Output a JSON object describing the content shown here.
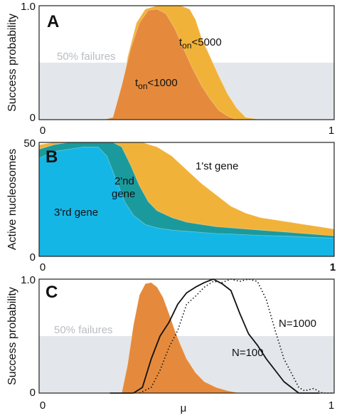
{
  "colors": {
    "orange": "#e58a3c",
    "yellow": "#f1b23a",
    "teal": "#1b9a9d",
    "blue": "#14b6e6",
    "failure_band": "#e3e6ea",
    "line": "#111111"
  },
  "chart_data": [
    {
      "id": "A",
      "panel_letter": "A",
      "type": "area",
      "ylabel": "Success probability",
      "xlim": [
        0,
        1
      ],
      "ylim": [
        0,
        1
      ],
      "x_tick_labels": [
        "0",
        "1"
      ],
      "y_tick_labels": [
        "0",
        "1.0"
      ],
      "band": {
        "from": 0,
        "to": 0.5,
        "label": "50% failures"
      },
      "series": [
        {
          "name": "t_on<5000",
          "label_main": "t",
          "label_sub": "on",
          "label_rest": "<5000",
          "color": "yellow",
          "x": [
            0.0,
            0.18,
            0.24,
            0.27,
            0.3,
            0.33,
            0.36,
            0.4,
            0.44,
            0.48,
            0.51,
            0.53,
            0.55,
            0.58,
            0.61,
            0.64,
            0.67,
            0.7,
            0.75,
            1.0
          ],
          "y": [
            0.0,
            0.0,
            0.0,
            0.05,
            0.55,
            0.85,
            0.97,
            1.0,
            1.0,
            1.0,
            0.97,
            0.88,
            0.72,
            0.55,
            0.38,
            0.22,
            0.1,
            0.02,
            0.0,
            0.0
          ]
        },
        {
          "name": "t_on<1000",
          "label_main": "t",
          "label_sub": "on",
          "label_rest": "<1000",
          "color": "orange",
          "x": [
            0.0,
            0.18,
            0.22,
            0.25,
            0.28,
            0.31,
            0.34,
            0.37,
            0.4,
            0.43,
            0.46,
            0.49,
            0.52,
            0.55,
            0.58,
            0.61,
            0.64,
            0.67,
            0.7,
            1.0
          ],
          "y": [
            0.0,
            0.0,
            0.0,
            0.02,
            0.3,
            0.62,
            0.85,
            0.96,
            0.97,
            0.93,
            0.8,
            0.62,
            0.45,
            0.3,
            0.18,
            0.08,
            0.03,
            0.0,
            0.0,
            0.0
          ]
        }
      ]
    },
    {
      "id": "B",
      "panel_letter": "B",
      "type": "area",
      "ylabel": "Active nucleosomes",
      "xlim": [
        0,
        1
      ],
      "ylim": [
        0,
        50
      ],
      "x_tick_labels": [
        "0",
        "1"
      ],
      "y_tick_labels": [
        "0",
        "50"
      ],
      "series": [
        {
          "name": "1'st gene",
          "label": "1'st gene",
          "color": "yellow",
          "x": [
            0.0,
            0.05,
            0.1,
            0.15,
            0.2,
            0.25,
            0.3,
            0.35,
            0.4,
            0.45,
            0.5,
            0.55,
            0.6,
            0.65,
            0.7,
            0.75,
            0.8,
            0.85,
            0.9,
            0.95,
            1.0
          ],
          "y": [
            49,
            50,
            50,
            50,
            50,
            50,
            50,
            50,
            48,
            44,
            38,
            32,
            27,
            22,
            19,
            17,
            16,
            15,
            14,
            13,
            12
          ]
        },
        {
          "name": "2'nd gene",
          "label_line1": "2'nd",
          "label_line2": "gene",
          "color": "teal",
          "x": [
            0.0,
            0.05,
            0.1,
            0.15,
            0.2,
            0.25,
            0.28,
            0.31,
            0.34,
            0.37,
            0.4,
            0.45,
            0.5,
            0.55,
            0.6,
            0.65,
            0.7,
            0.75,
            0.8,
            0.85,
            0.9,
            0.95,
            1.0
          ],
          "y": [
            47,
            49,
            50,
            50,
            50,
            50,
            48,
            40,
            31,
            24,
            20,
            17,
            15,
            14,
            13,
            12.5,
            12,
            11.5,
            11,
            10.5,
            10,
            9.5,
            9
          ]
        },
        {
          "name": "3'rd gene",
          "label": "3'rd gene",
          "color": "blue",
          "x": [
            0.0,
            0.05,
            0.1,
            0.15,
            0.2,
            0.23,
            0.26,
            0.29,
            0.32,
            0.36,
            0.4,
            0.45,
            0.5,
            0.55,
            0.6,
            0.65,
            0.7,
            0.75,
            0.8,
            0.85,
            0.9,
            0.95,
            1.0
          ],
          "y": [
            43,
            46,
            47,
            48,
            48,
            44,
            34,
            24,
            18,
            14,
            12.5,
            11.5,
            11,
            10.5,
            10,
            9.8,
            9.5,
            9.2,
            9,
            8.8,
            8.5,
            8.2,
            8
          ]
        }
      ]
    },
    {
      "id": "C",
      "panel_letter": "C",
      "type": "area",
      "ylabel": "Success probability",
      "xlabel": "μ",
      "xlim": [
        0,
        1
      ],
      "ylim": [
        0,
        1
      ],
      "x_tick_labels": [
        "0",
        "1"
      ],
      "y_tick_labels": [
        "0",
        "1.0"
      ],
      "band": {
        "from": 0,
        "to": 0.5,
        "label": "50% failures"
      },
      "series": [
        {
          "name": "orange area",
          "kind": "area",
          "color": "orange",
          "x": [
            0.0,
            0.28,
            0.3,
            0.32,
            0.34,
            0.36,
            0.38,
            0.4,
            0.42,
            0.44,
            0.46,
            0.48,
            0.5,
            0.53,
            0.56,
            0.6,
            0.64,
            0.68,
            0.72,
            1.0
          ],
          "y": [
            0.0,
            0.0,
            0.25,
            0.6,
            0.86,
            0.96,
            0.97,
            0.93,
            0.84,
            0.7,
            0.55,
            0.42,
            0.3,
            0.18,
            0.1,
            0.05,
            0.02,
            0.0,
            0.0,
            0.0
          ]
        },
        {
          "name": "N=100",
          "label": "N=100",
          "kind": "line",
          "dash": "solid",
          "x": [
            0.24,
            0.32,
            0.35,
            0.38,
            0.41,
            0.44,
            0.47,
            0.5,
            0.53,
            0.56,
            0.59,
            0.62,
            0.65,
            0.68,
            0.71,
            0.74,
            0.77,
            0.8,
            0.83,
            0.86,
            0.88,
            0.91,
            0.95
          ],
          "y": [
            0.0,
            0.0,
            0.05,
            0.3,
            0.5,
            0.62,
            0.78,
            0.88,
            0.93,
            0.97,
            1.0,
            0.96,
            0.9,
            0.7,
            0.52,
            0.42,
            0.3,
            0.2,
            0.1,
            0.04,
            0.0,
            0.0,
            0.0
          ]
        },
        {
          "name": "N=1000",
          "label": "N=1000",
          "kind": "line",
          "dash": "dotted",
          "x": [
            0.34,
            0.38,
            0.41,
            0.44,
            0.47,
            0.5,
            0.53,
            0.56,
            0.59,
            0.62,
            0.65,
            0.68,
            0.71,
            0.74,
            0.77,
            0.8,
            0.83,
            0.86,
            0.88,
            0.9,
            0.93,
            0.96,
            1.0
          ],
          "y": [
            0.0,
            0.05,
            0.2,
            0.4,
            0.55,
            0.78,
            0.85,
            0.93,
            0.98,
            0.97,
            1.0,
            0.98,
            1.0,
            0.98,
            0.82,
            0.55,
            0.3,
            0.15,
            0.05,
            0.02,
            0.04,
            0.0,
            0.0
          ]
        }
      ]
    }
  ]
}
